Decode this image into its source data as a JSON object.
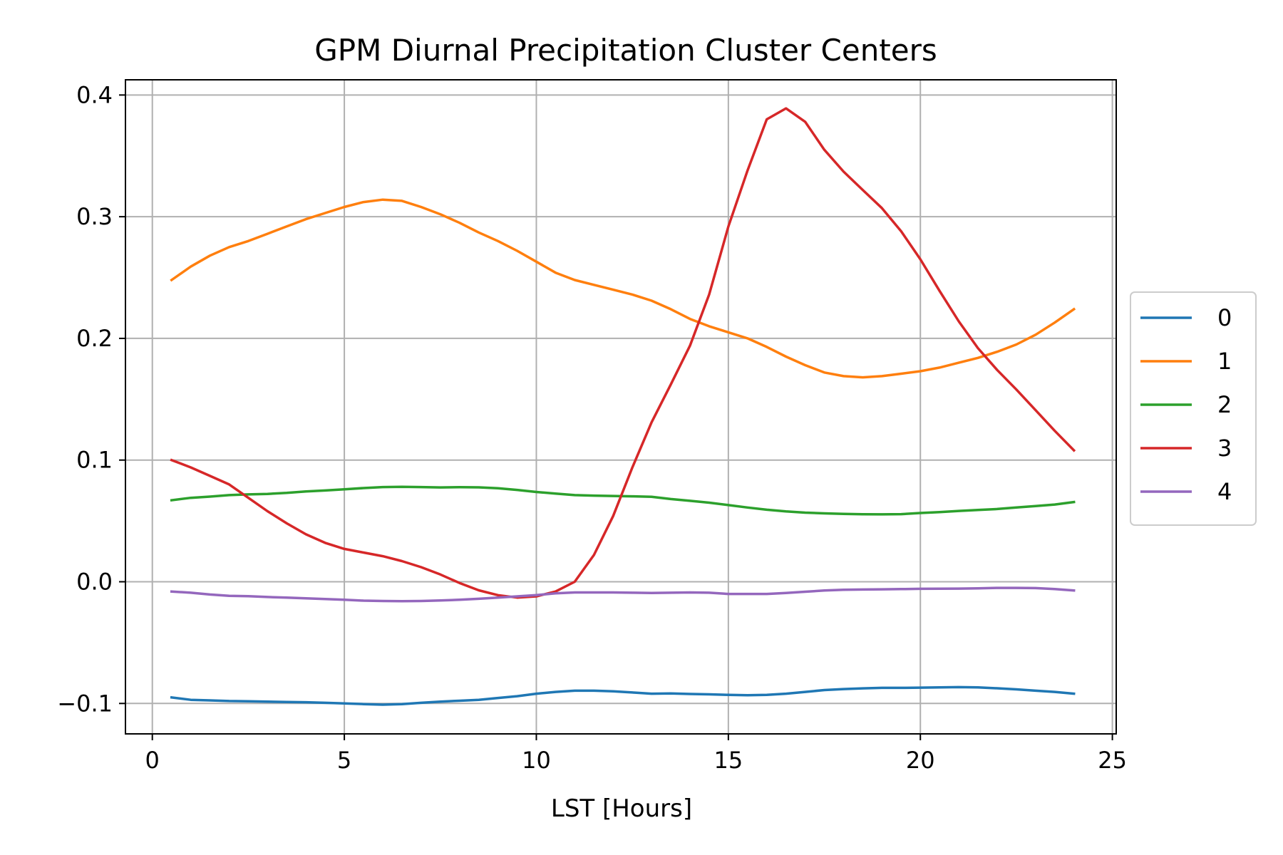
{
  "chart_data": {
    "type": "line",
    "title": "GPM Diurnal Precipitation Cluster Centers",
    "xlabel": "LST [Hours]",
    "ylabel": "",
    "xlim": [
      -0.7,
      25.1
    ],
    "ylim": [
      -0.125,
      0.4125
    ],
    "x_ticks": [
      0,
      5,
      10,
      15,
      20,
      25
    ],
    "x_tick_labels": [
      "0",
      "5",
      "10",
      "15",
      "20",
      "25"
    ],
    "y_ticks": [
      -0.1,
      0.0,
      0.1,
      0.2,
      0.3,
      0.4
    ],
    "y_tick_labels": [
      "−0.1",
      "0.0",
      "0.1",
      "0.2",
      "0.3",
      "0.4"
    ],
    "grid": true,
    "legend_position": "center-right-outside",
    "x": [
      0.5,
      1.0,
      1.5,
      2.0,
      2.5,
      3.0,
      3.5,
      4.0,
      4.5,
      5.0,
      5.5,
      6.0,
      6.5,
      7.0,
      7.5,
      8.0,
      8.5,
      9.0,
      9.5,
      10.0,
      10.5,
      11.0,
      11.5,
      12.0,
      12.5,
      13.0,
      13.5,
      14.0,
      14.5,
      15.0,
      15.5,
      16.0,
      16.5,
      17.0,
      17.5,
      18.0,
      18.5,
      19.0,
      19.5,
      20.0,
      20.5,
      21.0,
      21.5,
      22.0,
      22.5,
      23.0,
      23.5,
      24.0
    ],
    "series": [
      {
        "name": "0",
        "color": "#1f77b4",
        "values": [
          -0.095,
          -0.097,
          -0.0975,
          -0.098,
          -0.0982,
          -0.0985,
          -0.0988,
          -0.099,
          -0.0995,
          -0.1,
          -0.1005,
          -0.101,
          -0.1005,
          -0.0995,
          -0.0985,
          -0.0978,
          -0.097,
          -0.0955,
          -0.094,
          -0.092,
          -0.0905,
          -0.0895,
          -0.0895,
          -0.09,
          -0.091,
          -0.092,
          -0.0918,
          -0.0922,
          -0.0925,
          -0.093,
          -0.0932,
          -0.093,
          -0.092,
          -0.0905,
          -0.089,
          -0.0882,
          -0.0876,
          -0.0872,
          -0.0872,
          -0.087,
          -0.0868,
          -0.0866,
          -0.0868,
          -0.0875,
          -0.0884,
          -0.0895,
          -0.0905,
          -0.092
        ]
      },
      {
        "name": "1",
        "color": "#ff7f0e",
        "values": [
          0.248,
          0.259,
          0.268,
          0.275,
          0.28,
          0.286,
          0.292,
          0.298,
          0.303,
          0.308,
          0.312,
          0.314,
          0.313,
          0.308,
          0.302,
          0.295,
          0.287,
          0.28,
          0.272,
          0.263,
          0.254,
          0.248,
          0.244,
          0.24,
          0.236,
          0.231,
          0.224,
          0.216,
          0.21,
          0.205,
          0.2,
          0.193,
          0.185,
          0.178,
          0.172,
          0.169,
          0.168,
          0.169,
          0.171,
          0.173,
          0.176,
          0.18,
          0.184,
          0.189,
          0.195,
          0.203,
          0.213,
          0.224
        ]
      },
      {
        "name": "2",
        "color": "#2ca02c",
        "values": [
          0.067,
          0.069,
          0.07,
          0.0712,
          0.0718,
          0.0722,
          0.073,
          0.0742,
          0.075,
          0.076,
          0.077,
          0.0778,
          0.078,
          0.0778,
          0.0775,
          0.0777,
          0.0776,
          0.0768,
          0.0755,
          0.0738,
          0.0725,
          0.0712,
          0.0708,
          0.0705,
          0.0702,
          0.0698,
          0.068,
          0.0665,
          0.065,
          0.063,
          0.061,
          0.0592,
          0.0578,
          0.0568,
          0.0562,
          0.0558,
          0.0555,
          0.0554,
          0.0556,
          0.0565,
          0.0572,
          0.0582,
          0.059,
          0.0598,
          0.061,
          0.0622,
          0.0635,
          0.0655
        ]
      },
      {
        "name": "3",
        "color": "#d62728",
        "values": [
          0.1,
          0.094,
          0.087,
          0.08,
          0.069,
          0.058,
          0.048,
          0.039,
          0.032,
          0.027,
          0.024,
          0.021,
          0.017,
          0.012,
          0.006,
          -0.001,
          -0.007,
          -0.011,
          -0.013,
          -0.012,
          -0.008,
          0.0,
          0.022,
          0.054,
          0.094,
          0.131,
          0.162,
          0.194,
          0.236,
          0.292,
          0.338,
          0.38,
          0.389,
          0.378,
          0.355,
          0.337,
          0.322,
          0.307,
          0.288,
          0.265,
          0.239,
          0.214,
          0.192,
          0.174,
          0.158,
          0.141,
          0.124,
          0.108
        ]
      },
      {
        "name": "4",
        "color": "#9467bd",
        "values": [
          -0.008,
          -0.009,
          -0.0105,
          -0.0115,
          -0.0118,
          -0.0125,
          -0.013,
          -0.0136,
          -0.0142,
          -0.0148,
          -0.0155,
          -0.0158,
          -0.016,
          -0.0158,
          -0.0154,
          -0.0148,
          -0.014,
          -0.013,
          -0.012,
          -0.011,
          -0.0095,
          -0.0088,
          -0.0088,
          -0.0088,
          -0.009,
          -0.0092,
          -0.009,
          -0.0088,
          -0.009,
          -0.01,
          -0.01,
          -0.01,
          -0.0092,
          -0.0082,
          -0.0072,
          -0.0066,
          -0.0064,
          -0.0062,
          -0.006,
          -0.0058,
          -0.0057,
          -0.0056,
          -0.0054,
          -0.005,
          -0.005,
          -0.0052,
          -0.006,
          -0.0072
        ]
      }
    ]
  }
}
